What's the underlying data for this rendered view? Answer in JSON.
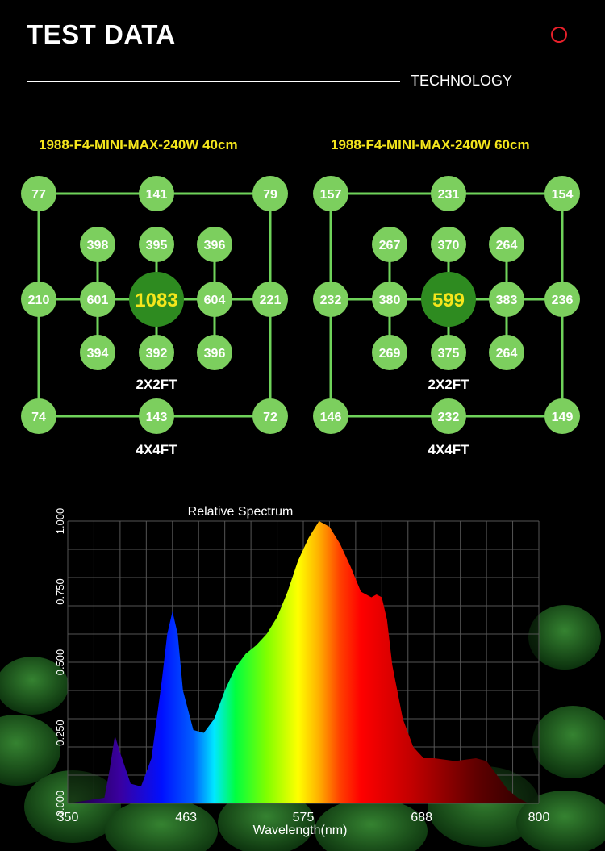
{
  "header": {
    "title": "TEST DATA",
    "subtitle": "TECHNOLOGY",
    "accent": "#e8202a"
  },
  "grids": [
    {
      "title": "1988-F4-MINI-MAX-240W 40cm",
      "center": "1083",
      "inner_top": [
        "398",
        "395",
        "396"
      ],
      "inner_mid": [
        "601",
        "604"
      ],
      "inner_bottom": [
        "394",
        "392",
        "396"
      ],
      "outer_top": [
        "77",
        "141",
        "79"
      ],
      "outer_mid": [
        "210",
        "221"
      ],
      "outer_bottom": [
        "74",
        "143",
        "72"
      ],
      "inner_label": "2X2FT",
      "outer_label": "4X4FT"
    },
    {
      "title": "1988-F4-MINI-MAX-240W 60cm",
      "center": "599",
      "inner_top": [
        "267",
        "370",
        "264"
      ],
      "inner_mid": [
        "380",
        "383"
      ],
      "inner_bottom": [
        "269",
        "375",
        "264"
      ],
      "outer_top": [
        "157",
        "231",
        "154"
      ],
      "outer_mid": [
        "232",
        "236"
      ],
      "outer_bottom": [
        "146",
        "232",
        "149"
      ],
      "inner_label": "2X2FT",
      "outer_label": "4X4FT"
    }
  ],
  "colors": {
    "node": "#7ccf5e",
    "center_node": "#2e8b20",
    "line": "#6fd35a",
    "center_text": "#f5e61c",
    "title_text": "#f5e61c"
  },
  "chart_data": {
    "type": "area",
    "title": "Relative Spectrum",
    "xlabel": "Wavelength(nm)",
    "ylabel": "",
    "xlim": [
      350,
      800
    ],
    "ylim": [
      0,
      1
    ],
    "x_ticks": [
      "350",
      "463",
      "575",
      "688",
      "800"
    ],
    "y_ticks": [
      "0.000",
      "0.250",
      "0.500",
      "0.750",
      "1.000"
    ],
    "grid": true,
    "x": [
      350,
      385,
      390,
      395,
      400,
      410,
      420,
      430,
      440,
      445,
      450,
      455,
      460,
      470,
      480,
      490,
      500,
      510,
      520,
      530,
      540,
      550,
      560,
      570,
      580,
      590,
      600,
      610,
      620,
      630,
      640,
      645,
      650,
      655,
      660,
      670,
      680,
      690,
      700,
      720,
      740,
      750,
      760,
      770,
      780,
      790,
      800
    ],
    "y": [
      0.0,
      0.02,
      0.12,
      0.24,
      0.18,
      0.07,
      0.06,
      0.16,
      0.44,
      0.6,
      0.68,
      0.6,
      0.4,
      0.26,
      0.25,
      0.3,
      0.4,
      0.48,
      0.53,
      0.56,
      0.6,
      0.66,
      0.75,
      0.86,
      0.94,
      1.0,
      0.98,
      0.92,
      0.84,
      0.75,
      0.73,
      0.74,
      0.73,
      0.65,
      0.49,
      0.3,
      0.2,
      0.16,
      0.16,
      0.15,
      0.16,
      0.15,
      0.1,
      0.05,
      0.02,
      0.0,
      0.0
    ]
  }
}
